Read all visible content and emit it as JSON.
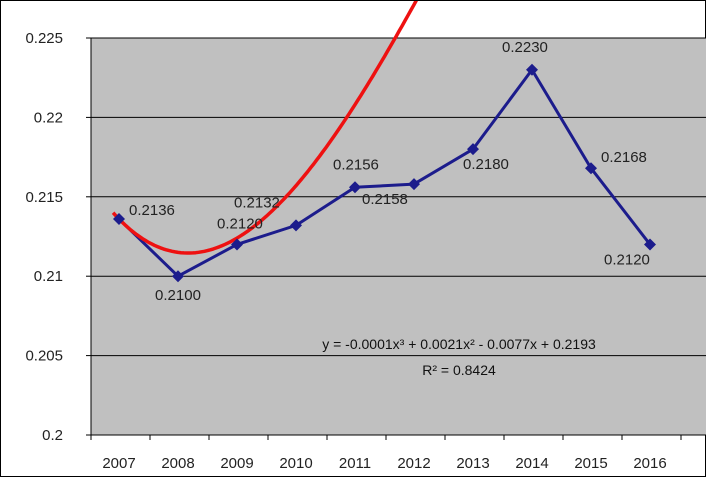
{
  "chart_data": {
    "type": "line",
    "title": "",
    "xlabel": "",
    "ylabel": "",
    "categories": [
      "2007",
      "2008",
      "2009",
      "2010",
      "2011",
      "2012",
      "2013",
      "2014",
      "2015",
      "2016"
    ],
    "series": [
      {
        "values": [
          0.2136,
          0.21,
          0.212,
          0.2132,
          0.2156,
          0.2158,
          0.218,
          0.223,
          0.2168,
          0.212
        ],
        "labels": [
          "0.2136",
          "0.2100",
          "0.2120",
          "0.2132",
          "0.2156",
          "0.2158",
          "0.2180",
          "0.2230",
          "0.2168",
          "0.2120"
        ],
        "color": "#1c1c8c",
        "marker": "diamond"
      }
    ],
    "trendline": {
      "type": "polynomial",
      "order": 3,
      "color": "#ee1111",
      "coefficients": [
        -0.0001,
        0.0021,
        -0.0077,
        0.2193
      ],
      "equation_text": "y = -0.0001x³ + 0.0021x² - 0.0077x + 0.2193",
      "r2_text": "R² = 0.8424"
    },
    "ylim": [
      0.2,
      0.225
    ],
    "yticks": [
      "0.2",
      "0.205",
      "0.21",
      "0.215",
      "0.22",
      "0.225"
    ],
    "grid": true,
    "plot_background": "#c0c0c0",
    "legend": "none"
  }
}
